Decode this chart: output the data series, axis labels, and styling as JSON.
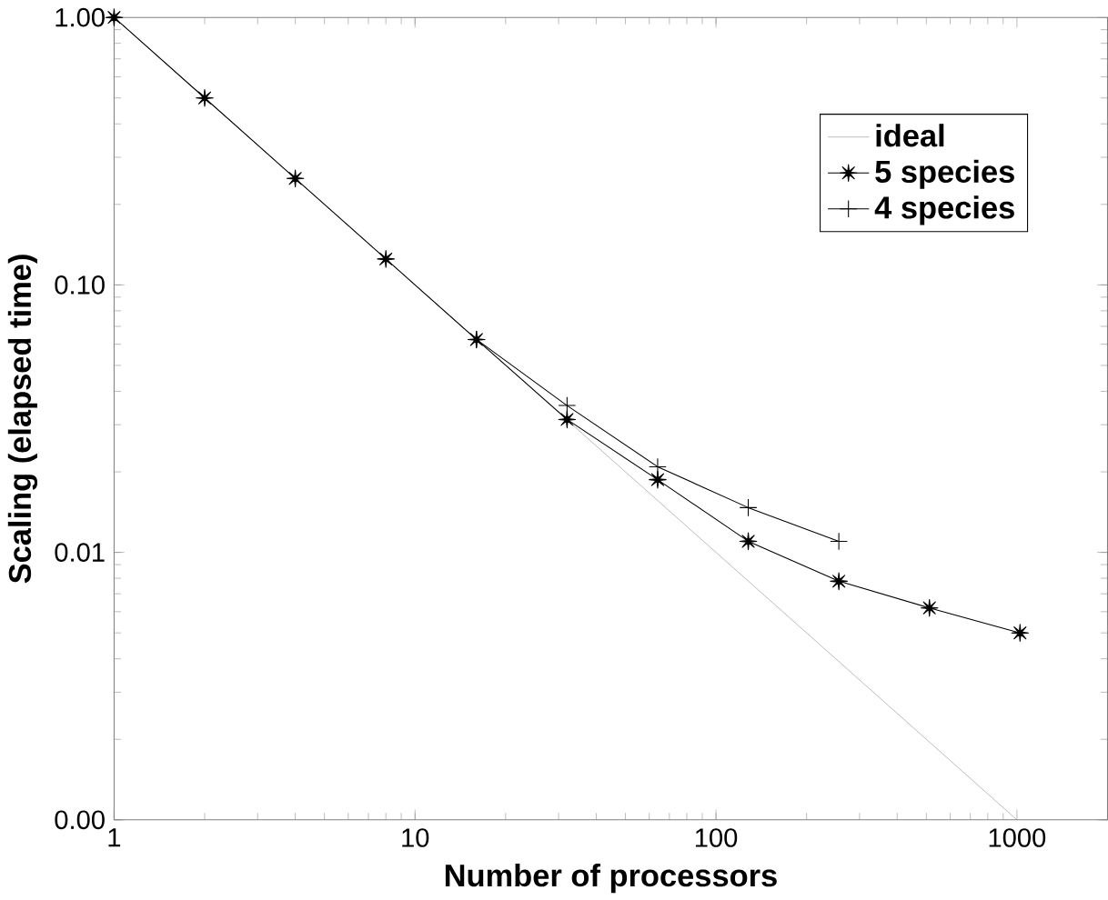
{
  "chart_data": {
    "type": "line",
    "xlabel": "Number of processors",
    "ylabel": "Scaling (elapsed time)",
    "log": "xy",
    "grid": false,
    "legend": "top right",
    "xlim": [
      1,
      2000
    ],
    "xticks": [
      1,
      10,
      100,
      1000
    ],
    "ylim": [
      0.001,
      1
    ],
    "yticks": [
      {
        "value": 0.001,
        "label": "0.00"
      },
      {
        "value": 0.01,
        "label": "0.01"
      },
      {
        "value": 0.1,
        "label": "0.10"
      },
      {
        "value": 1,
        "label": "1.00"
      }
    ],
    "series": [
      {
        "name": "ideal",
        "color": "#808080",
        "marker": "none",
        "x": [
          1,
          1000
        ],
        "values": [
          1,
          0.001
        ]
      },
      {
        "name": "5 species",
        "color": "#000000",
        "marker": "star",
        "x": [
          1,
          2,
          4,
          8,
          16,
          32,
          64,
          128,
          256,
          512,
          1024
        ],
        "values": [
          1,
          0.5,
          0.25,
          0.125,
          0.0625,
          0.0314,
          0.0187,
          0.011,
          0.0078,
          0.0062,
          0.005
        ]
      },
      {
        "name": "4 species",
        "color": "#000000",
        "marker": "cross",
        "x": [
          16,
          32,
          64,
          128,
          256
        ],
        "values": [
          0.0625,
          0.0354,
          0.0209,
          0.0147,
          0.011
        ]
      }
    ]
  }
}
